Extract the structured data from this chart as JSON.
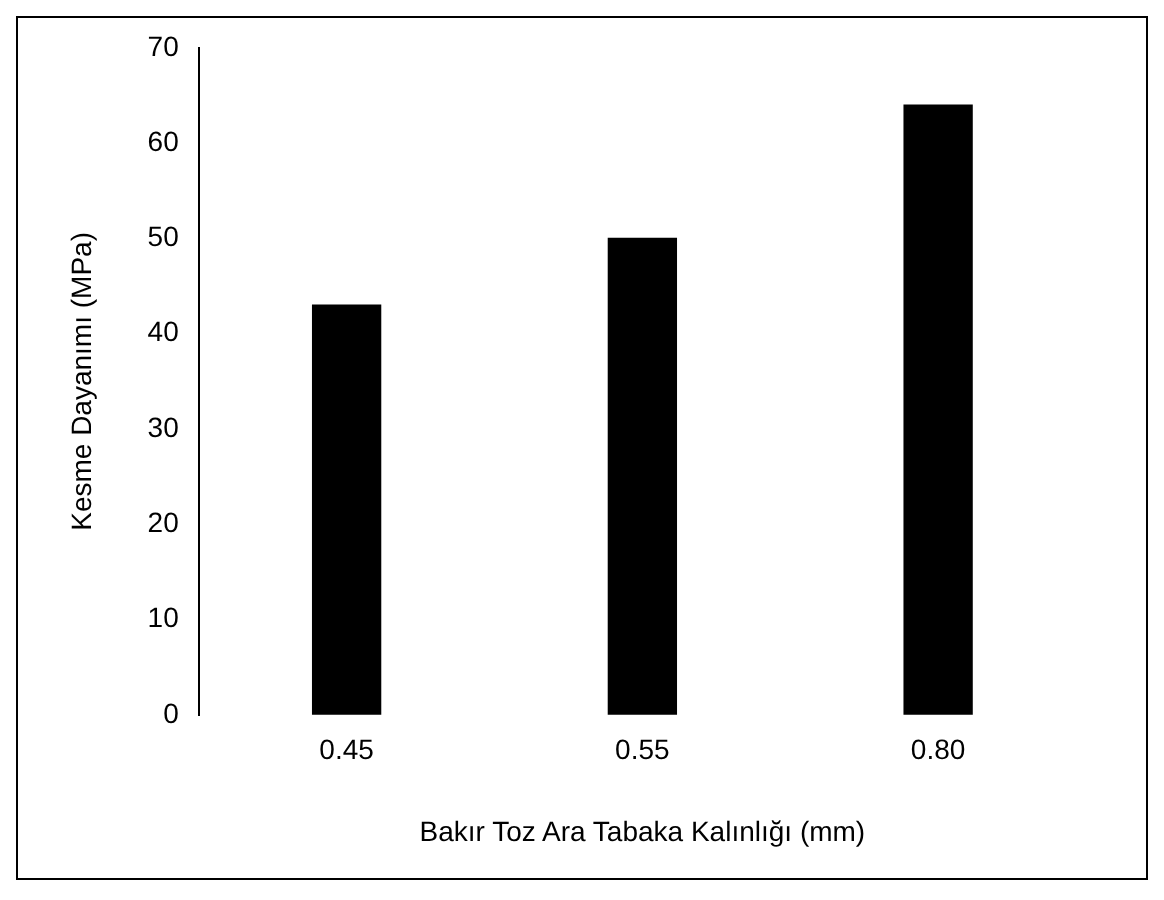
{
  "chart_data": {
    "type": "bar",
    "xlabel": "Bakır Toz Ara Tabaka Kalınlığı (mm)",
    "ylabel": "Kesme Dayanımı (MPa)",
    "categories": [
      "0.45",
      "0.55",
      "0.80"
    ],
    "values": [
      43,
      50,
      64
    ],
    "color": "#000000",
    "ylim": [
      0,
      70
    ],
    "yticks": [
      0,
      10,
      20,
      30,
      40,
      50,
      60,
      70
    ],
    "grid": false,
    "legend": false
  }
}
